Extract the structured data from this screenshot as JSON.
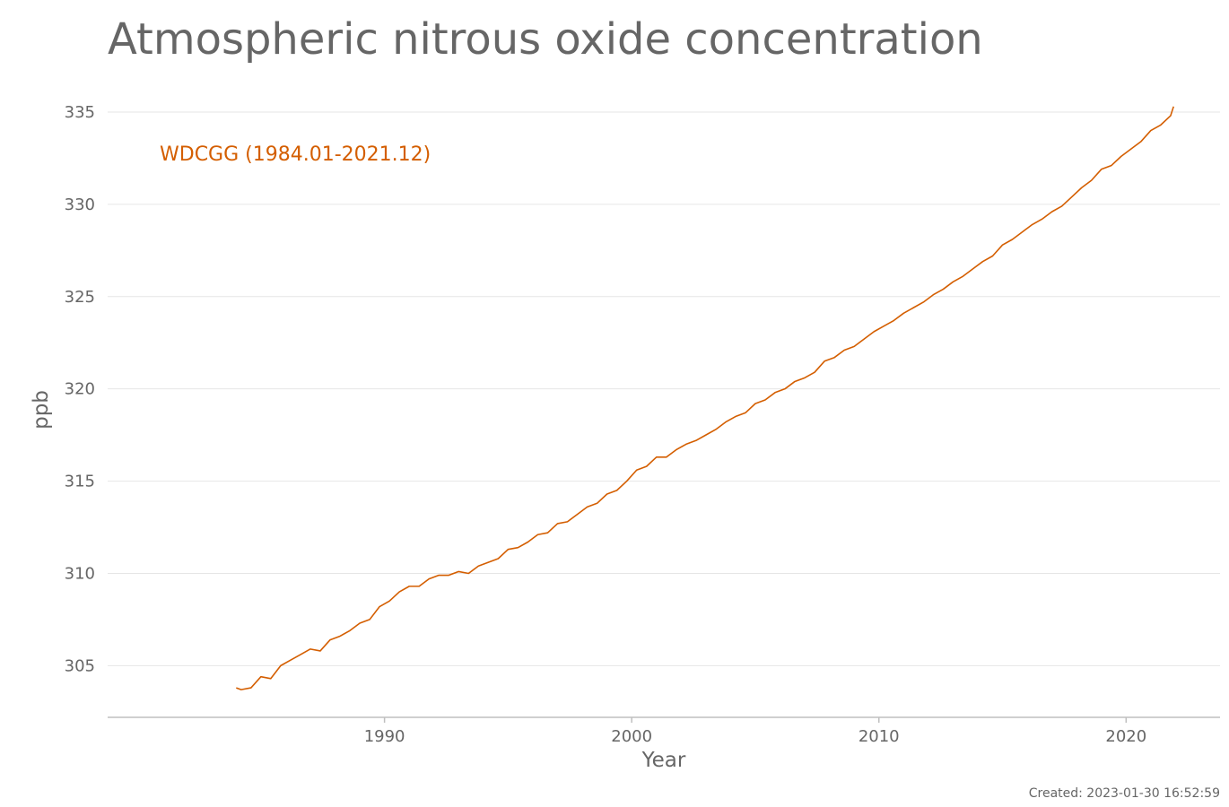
{
  "chart_data": {
    "type": "line",
    "title": "Atmospheric nitrous oxide concentration",
    "xlabel": "Year",
    "ylabel": "ppb",
    "xlim": [
      1978.8,
      2023.8
    ],
    "ylim": [
      302.2,
      336.7
    ],
    "xticks": [
      1990,
      2000,
      2010,
      2020
    ],
    "yticks": [
      305,
      310,
      315,
      320,
      325,
      330,
      335
    ],
    "grid": "horizontal",
    "legend": "inline label, top-left",
    "series": [
      {
        "name": "WDCGG (1984.01-2021.12)",
        "color": "#d45e00",
        "x": [
          1984.0,
          1984.2,
          1984.6,
          1985.0,
          1985.4,
          1985.8,
          1986.2,
          1986.6,
          1987.0,
          1987.4,
          1987.8,
          1988.2,
          1988.6,
          1989.0,
          1989.4,
          1989.8,
          1990.2,
          1990.6,
          1991.0,
          1991.4,
          1991.8,
          1992.2,
          1992.6,
          1993.0,
          1993.4,
          1993.8,
          1994.2,
          1994.6,
          1995.0,
          1995.4,
          1995.8,
          1996.2,
          1996.6,
          1997.0,
          1997.4,
          1997.8,
          1998.2,
          1998.6,
          1999.0,
          1999.4,
          1999.8,
          2000.2,
          2000.6,
          2001.0,
          2001.4,
          2001.8,
          2002.2,
          2002.6,
          2003.0,
          2003.4,
          2003.8,
          2004.2,
          2004.6,
          2005.0,
          2005.4,
          2005.8,
          2006.2,
          2006.6,
          2007.0,
          2007.4,
          2007.8,
          2008.2,
          2008.6,
          2009.0,
          2009.4,
          2009.8,
          2010.2,
          2010.6,
          2011.0,
          2011.4,
          2011.8,
          2012.2,
          2012.6,
          2013.0,
          2013.4,
          2013.8,
          2014.2,
          2014.6,
          2015.0,
          2015.4,
          2015.8,
          2016.2,
          2016.6,
          2017.0,
          2017.4,
          2017.8,
          2018.2,
          2018.6,
          2019.0,
          2019.4,
          2019.8,
          2020.2,
          2020.6,
          2021.0,
          2021.4,
          2021.8,
          2021.92
        ],
        "values": [
          303.8,
          303.7,
          303.8,
          304.4,
          304.3,
          305.0,
          305.3,
          305.6,
          305.9,
          305.8,
          306.4,
          306.6,
          306.9,
          307.3,
          307.5,
          308.2,
          308.5,
          309.0,
          309.3,
          309.3,
          309.7,
          309.9,
          309.9,
          310.1,
          310.0,
          310.4,
          310.6,
          310.8,
          311.3,
          311.4,
          311.7,
          312.1,
          312.2,
          312.7,
          312.8,
          313.2,
          313.6,
          313.8,
          314.3,
          314.5,
          315.0,
          315.6,
          315.8,
          316.3,
          316.3,
          316.7,
          317.0,
          317.2,
          317.5,
          317.8,
          318.2,
          318.5,
          318.7,
          319.2,
          319.4,
          319.8,
          320.0,
          320.4,
          320.6,
          320.9,
          321.5,
          321.7,
          322.1,
          322.3,
          322.7,
          323.1,
          323.4,
          323.7,
          324.1,
          324.4,
          324.7,
          325.1,
          325.4,
          325.8,
          326.1,
          326.5,
          326.9,
          327.2,
          327.8,
          328.1,
          328.5,
          328.9,
          329.2,
          329.6,
          329.9,
          330.4,
          330.9,
          331.3,
          331.9,
          332.1,
          332.6,
          333.0,
          333.4,
          334.0,
          334.3,
          334.8,
          335.3
        ]
      }
    ]
  },
  "footer": {
    "created": "Created: 2023-01-30 16:52:59"
  }
}
